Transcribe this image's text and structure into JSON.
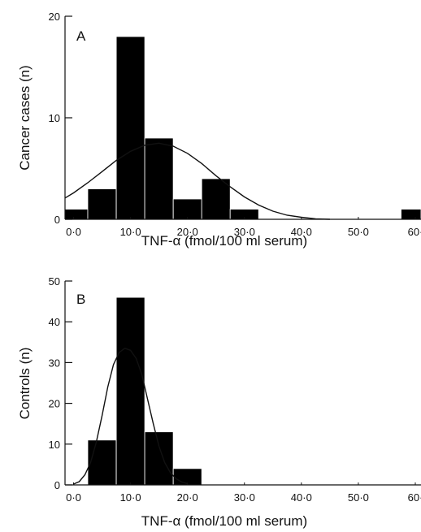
{
  "chart_data": [
    {
      "type": "bar",
      "panel_label": "A",
      "xlabel": "TNF-α (fmol/100 ml serum)",
      "ylabel": "Cancer cases (n)",
      "xlim": [
        -1.5,
        61
      ],
      "ylim": [
        0,
        20
      ],
      "x_ticks": [
        0,
        10,
        20,
        30,
        40,
        50,
        60
      ],
      "x_tick_labels": [
        "0·0",
        "10·0",
        "20·0",
        "30·0",
        "40·0",
        "50·0",
        "60·"
      ],
      "y_ticks": [
        0,
        10,
        20
      ],
      "y_tick_labels": [
        "0",
        "10",
        "20"
      ],
      "bin_width": 5,
      "bins": [
        {
          "start": -2.5,
          "count": 1
        },
        {
          "start": 2.5,
          "count": 3
        },
        {
          "start": 7.5,
          "count": 18
        },
        {
          "start": 12.5,
          "count": 8
        },
        {
          "start": 17.5,
          "count": 2
        },
        {
          "start": 22.5,
          "count": 4
        },
        {
          "start": 27.5,
          "count": 1
        },
        {
          "start": 57.5,
          "count": 1
        }
      ],
      "fit_curve": {
        "type": "normal",
        "x": [
          -1.5,
          0,
          2.5,
          5,
          7.5,
          10,
          12.5,
          15,
          17.5,
          20,
          22.5,
          25,
          27.5,
          30,
          32.5,
          35,
          37.5,
          40,
          42.5,
          45
        ],
        "y": [
          2.1,
          2.6,
          3.6,
          4.7,
          5.8,
          6.7,
          7.3,
          7.5,
          7.2,
          6.5,
          5.5,
          4.3,
          3.2,
          2.2,
          1.4,
          0.8,
          0.4,
          0.2,
          0.05,
          0
        ]
      }
    },
    {
      "type": "bar",
      "panel_label": "B",
      "xlabel": "TNF-α (fmol/100 ml serum)",
      "ylabel": "Controls (n)",
      "xlim": [
        -1.5,
        61
      ],
      "ylim": [
        0,
        50
      ],
      "x_ticks": [
        0,
        10,
        20,
        30,
        40,
        50,
        60
      ],
      "x_tick_labels": [
        "0·0",
        "10·0",
        "20·0",
        "30·0",
        "40·0",
        "50·0",
        "60·"
      ],
      "y_ticks": [
        0,
        10,
        20,
        30,
        40,
        50
      ],
      "y_tick_labels": [
        "0",
        "10",
        "20",
        "30",
        "40",
        "50"
      ],
      "bin_width": 5,
      "bins": [
        {
          "start": 2.5,
          "count": 11
        },
        {
          "start": 7.5,
          "count": 46
        },
        {
          "start": 12.5,
          "count": 13
        },
        {
          "start": 17.5,
          "count": 4
        }
      ],
      "fit_curve": {
        "type": "normal",
        "x": [
          0,
          1,
          2,
          3,
          4,
          5,
          6,
          7,
          8,
          9,
          10,
          11,
          12,
          13,
          14,
          15,
          16,
          17,
          18,
          19,
          20
        ],
        "y": [
          0.2,
          0.8,
          2.5,
          5.5,
          10.5,
          17,
          24,
          29.5,
          32.5,
          33.5,
          33,
          31,
          27,
          21,
          15,
          9.5,
          5.5,
          3,
          1.5,
          0.7,
          0.3
        ]
      }
    }
  ]
}
